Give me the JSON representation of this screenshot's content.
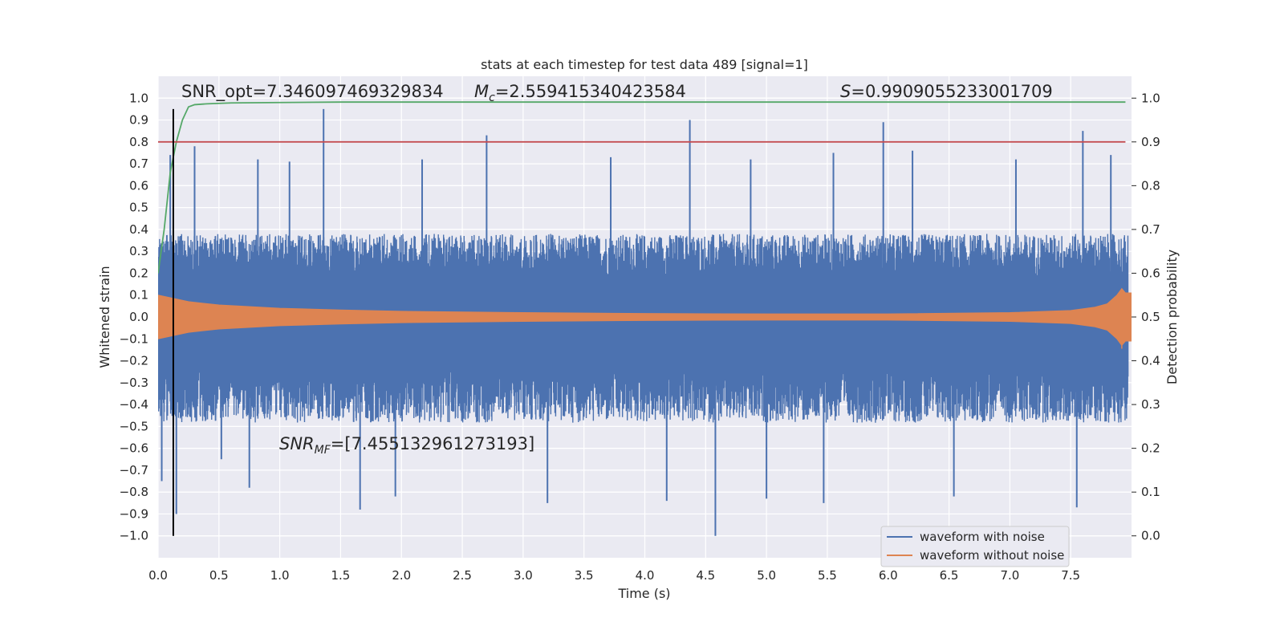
{
  "chart_data": {
    "type": "line",
    "title": "stats at each timestep for test data 489 [signal=1]",
    "xlabel": "Time (s)",
    "ylabel": "Whitened strain",
    "y2label": "Detection probability",
    "xlim": [
      0.0,
      8.0
    ],
    "ylim": [
      -1.1,
      1.1
    ],
    "y2lim": [
      -0.05,
      1.05
    ],
    "grid": true,
    "legend_position": "lower-right",
    "x_ticks": [
      0.0,
      0.5,
      1.0,
      1.5,
      2.0,
      2.5,
      3.0,
      3.5,
      4.0,
      4.5,
      5.0,
      5.5,
      6.0,
      6.5,
      7.0,
      7.5
    ],
    "x_tick_labels": [
      "0.0",
      "0.5",
      "1.0",
      "1.5",
      "2.0",
      "2.5",
      "3.0",
      "3.5",
      "4.0",
      "4.5",
      "5.0",
      "5.5",
      "6.0",
      "6.5",
      "7.0",
      "7.5"
    ],
    "y_ticks": [
      1.0,
      0.9,
      0.8,
      0.7,
      0.6,
      0.5,
      0.4,
      0.3,
      0.2,
      0.1,
      0.0,
      -0.1,
      -0.2,
      -0.3,
      -0.4,
      -0.5,
      -0.6,
      -0.7,
      -0.8,
      -0.9,
      -1.0
    ],
    "y_tick_labels": [
      "1.0",
      "0.9",
      "0.8",
      "0.7",
      "0.6",
      "0.5",
      "0.4",
      "0.3",
      "0.2",
      "0.1",
      "0.0",
      "−0.1",
      "−0.2",
      "−0.3",
      "−0.4",
      "−0.5",
      "−0.6",
      "−0.7",
      "−0.8",
      "−0.9",
      "−1.0"
    ],
    "y2_ticks": [
      1.0,
      0.9,
      0.8,
      0.7,
      0.6,
      0.5,
      0.4,
      0.3,
      0.2,
      0.1,
      0.0
    ],
    "y2_tick_labels": [
      "1.0",
      "0.9",
      "0.8",
      "0.7",
      "0.6",
      "0.5",
      "0.4",
      "0.3",
      "0.2",
      "0.1",
      "0.0"
    ],
    "series": [
      {
        "name": "waveform with noise",
        "color": "#4c72b0",
        "axis": "left",
        "band": {
          "upper_typical": 0.33,
          "lower_typical": -0.42
        },
        "spikes": [
          {
            "x": 0.03,
            "y": -0.75
          },
          {
            "x": 0.1,
            "y": 0.74
          },
          {
            "x": 0.15,
            "y": -0.9
          },
          {
            "x": 0.3,
            "y": 0.78
          },
          {
            "x": 0.52,
            "y": -0.65
          },
          {
            "x": 0.75,
            "y": -0.78
          },
          {
            "x": 0.82,
            "y": 0.72
          },
          {
            "x": 1.08,
            "y": 0.71
          },
          {
            "x": 1.36,
            "y": 0.95
          },
          {
            "x": 1.66,
            "y": -0.88
          },
          {
            "x": 1.95,
            "y": -0.82
          },
          {
            "x": 2.17,
            "y": 0.72
          },
          {
            "x": 2.7,
            "y": 0.83
          },
          {
            "x": 3.2,
            "y": -0.85
          },
          {
            "x": 3.72,
            "y": 0.73
          },
          {
            "x": 4.0,
            "y": 0.15
          },
          {
            "x": 4.18,
            "y": -0.84
          },
          {
            "x": 4.37,
            "y": 0.9
          },
          {
            "x": 4.58,
            "y": -1.0
          },
          {
            "x": 4.87,
            "y": 0.72
          },
          {
            "x": 5.0,
            "y": -0.83
          },
          {
            "x": 5.47,
            "y": -0.85
          },
          {
            "x": 5.55,
            "y": 0.75
          },
          {
            "x": 5.96,
            "y": 0.89
          },
          {
            "x": 6.2,
            "y": 0.76
          },
          {
            "x": 6.54,
            "y": -0.82
          },
          {
            "x": 7.05,
            "y": 0.72
          },
          {
            "x": 7.55,
            "y": -0.87
          },
          {
            "x": 7.6,
            "y": 0.85
          },
          {
            "x": 7.83,
            "y": 0.74
          }
        ]
      },
      {
        "name": "waveform without noise",
        "color": "#dd8452",
        "axis": "left",
        "envelope": [
          {
            "x": 0.0,
            "y": 0.1
          },
          {
            "x": 0.25,
            "y": 0.07
          },
          {
            "x": 0.5,
            "y": 0.055
          },
          {
            "x": 1.0,
            "y": 0.04
          },
          {
            "x": 1.5,
            "y": 0.032
          },
          {
            "x": 2.0,
            "y": 0.026
          },
          {
            "x": 3.0,
            "y": 0.02
          },
          {
            "x": 4.0,
            "y": 0.016
          },
          {
            "x": 5.0,
            "y": 0.014
          },
          {
            "x": 6.0,
            "y": 0.014
          },
          {
            "x": 7.0,
            "y": 0.02
          },
          {
            "x": 7.5,
            "y": 0.03
          },
          {
            "x": 7.7,
            "y": 0.045
          },
          {
            "x": 7.8,
            "y": 0.06
          },
          {
            "x": 7.88,
            "y": 0.1
          },
          {
            "x": 7.92,
            "y": 0.13
          },
          {
            "x": 7.95,
            "y": 0.11
          },
          {
            "x": 8.0,
            "y": 0.11
          }
        ]
      },
      {
        "name": "",
        "color": "#55a868",
        "axis": "right",
        "points": [
          {
            "x": 0.0,
            "y": 0.6
          },
          {
            "x": 0.05,
            "y": 0.7
          },
          {
            "x": 0.1,
            "y": 0.83
          },
          {
            "x": 0.15,
            "y": 0.9
          },
          {
            "x": 0.2,
            "y": 0.95
          },
          {
            "x": 0.25,
            "y": 0.98
          },
          {
            "x": 0.3,
            "y": 0.985
          },
          {
            "x": 0.4,
            "y": 0.987
          },
          {
            "x": 0.6,
            "y": 0.989
          },
          {
            "x": 1.0,
            "y": 0.99
          },
          {
            "x": 1.5,
            "y": 0.991
          },
          {
            "x": 2.0,
            "y": 0.991
          },
          {
            "x": 4.0,
            "y": 0.991
          },
          {
            "x": 6.0,
            "y": 0.991
          },
          {
            "x": 7.95,
            "y": 0.991
          }
        ]
      },
      {
        "name": "",
        "color": "#c44e52",
        "axis": "right",
        "points": [
          {
            "x": 0.0,
            "y": 0.9
          },
          {
            "x": 7.95,
            "y": 0.9
          }
        ]
      }
    ],
    "vertical_line": {
      "x": 0.125,
      "color": "#000000",
      "y_from": -1.0,
      "y_to": 0.95
    },
    "annotations": {
      "snr_opt": "SNR_opt=7.346097469329834",
      "mc": "M_c=2.559415340423584",
      "mc_symbol": "M",
      "mc_subscript": "c",
      "mc_value": "=2.559415340423584",
      "s_symbol": "S",
      "s_value": "=0.9909055233001709",
      "snr_mf_symbol": "SNR",
      "snr_mf_subscript": "MF",
      "snr_mf_value": "=[7.455132961273193]"
    },
    "legend_entries": [
      "waveform with noise",
      "waveform without noise"
    ]
  }
}
